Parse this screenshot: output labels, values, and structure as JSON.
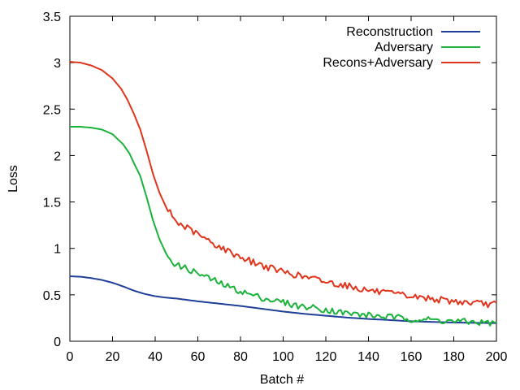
{
  "chart_data": {
    "type": "line",
    "xlabel": "Batch #",
    "ylabel": "Loss",
    "xlim": [
      0,
      200
    ],
    "ylim": [
      0,
      3.5
    ],
    "xticks": [
      "0",
      "20",
      "40",
      "60",
      "80",
      "100",
      "120",
      "140",
      "160",
      "180",
      "200"
    ],
    "yticks": [
      "0",
      "0.5",
      "1",
      "1.5",
      "2",
      "2.5",
      "3",
      "3.5"
    ],
    "grid": false,
    "legend_position": "top-right",
    "series": [
      {
        "name": "Reconstruction",
        "color": "#1f3f99",
        "points": [
          [
            0,
            0.7
          ],
          [
            5,
            0.695
          ],
          [
            10,
            0.68
          ],
          [
            15,
            0.66
          ],
          [
            20,
            0.63
          ],
          [
            25,
            0.59
          ],
          [
            30,
            0.545
          ],
          [
            35,
            0.51
          ],
          [
            40,
            0.485
          ],
          [
            45,
            0.47
          ],
          [
            50,
            0.46
          ],
          [
            55,
            0.445
          ],
          [
            60,
            0.43
          ],
          [
            70,
            0.405
          ],
          [
            80,
            0.38
          ],
          [
            90,
            0.35
          ],
          [
            100,
            0.32
          ],
          [
            110,
            0.295
          ],
          [
            120,
            0.275
          ],
          [
            130,
            0.255
          ],
          [
            140,
            0.24
          ],
          [
            150,
            0.228
          ],
          [
            160,
            0.215
          ],
          [
            170,
            0.208
          ],
          [
            180,
            0.202
          ],
          [
            190,
            0.198
          ],
          [
            200,
            0.195
          ]
        ]
      },
      {
        "name": "Adversary",
        "color": "#1ab23a",
        "points": [
          [
            0,
            2.31
          ],
          [
            5,
            2.31
          ],
          [
            10,
            2.3
          ],
          [
            15,
            2.28
          ],
          [
            20,
            2.23
          ],
          [
            25,
            2.12
          ],
          [
            28,
            2.02
          ],
          [
            30,
            1.92
          ],
          [
            33,
            1.78
          ],
          [
            36,
            1.55
          ],
          [
            39,
            1.3
          ],
          [
            42,
            1.1
          ],
          [
            45,
            0.95
          ],
          [
            48,
            0.86
          ],
          [
            50,
            0.82
          ],
          [
            55,
            0.78
          ],
          [
            60,
            0.73
          ],
          [
            65,
            0.68
          ],
          [
            70,
            0.63
          ],
          [
            75,
            0.58
          ],
          [
            80,
            0.54
          ],
          [
            85,
            0.5
          ],
          [
            90,
            0.47
          ],
          [
            95,
            0.44
          ],
          [
            100,
            0.42
          ],
          [
            105,
            0.39
          ],
          [
            110,
            0.37
          ],
          [
            115,
            0.36
          ],
          [
            120,
            0.34
          ],
          [
            125,
            0.32
          ],
          [
            130,
            0.3
          ],
          [
            135,
            0.29
          ],
          [
            140,
            0.28
          ],
          [
            145,
            0.27
          ],
          [
            150,
            0.26
          ],
          [
            155,
            0.25
          ],
          [
            160,
            0.24
          ],
          [
            165,
            0.235
          ],
          [
            170,
            0.23
          ],
          [
            175,
            0.22
          ],
          [
            180,
            0.215
          ],
          [
            185,
            0.21
          ],
          [
            190,
            0.205
          ],
          [
            195,
            0.2
          ],
          [
            200,
            0.195
          ]
        ]
      },
      {
        "name": "Recons+Adversary",
        "color": "#e0341c",
        "points": [
          [
            0,
            3.01
          ],
          [
            5,
            3.0
          ],
          [
            10,
            2.97
          ],
          [
            15,
            2.92
          ],
          [
            20,
            2.83
          ],
          [
            24,
            2.72
          ],
          [
            27,
            2.6
          ],
          [
            30,
            2.45
          ],
          [
            33,
            2.28
          ],
          [
            36,
            2.05
          ],
          [
            39,
            1.8
          ],
          [
            42,
            1.6
          ],
          [
            45,
            1.45
          ],
          [
            48,
            1.35
          ],
          [
            50,
            1.28
          ],
          [
            55,
            1.22
          ],
          [
            60,
            1.15
          ],
          [
            65,
            1.08
          ],
          [
            70,
            1.02
          ],
          [
            75,
            0.96
          ],
          [
            80,
            0.91
          ],
          [
            85,
            0.86
          ],
          [
            90,
            0.82
          ],
          [
            95,
            0.78
          ],
          [
            100,
            0.75
          ],
          [
            105,
            0.72
          ],
          [
            110,
            0.69
          ],
          [
            115,
            0.67
          ],
          [
            120,
            0.64
          ],
          [
            125,
            0.62
          ],
          [
            130,
            0.6
          ],
          [
            135,
            0.57
          ],
          [
            140,
            0.55
          ],
          [
            145,
            0.53
          ],
          [
            150,
            0.51
          ],
          [
            155,
            0.5
          ],
          [
            160,
            0.48
          ],
          [
            165,
            0.47
          ],
          [
            170,
            0.46
          ],
          [
            175,
            0.44
          ],
          [
            180,
            0.43
          ],
          [
            185,
            0.42
          ],
          [
            190,
            0.41
          ],
          [
            195,
            0.4
          ],
          [
            200,
            0.4
          ]
        ]
      }
    ]
  }
}
